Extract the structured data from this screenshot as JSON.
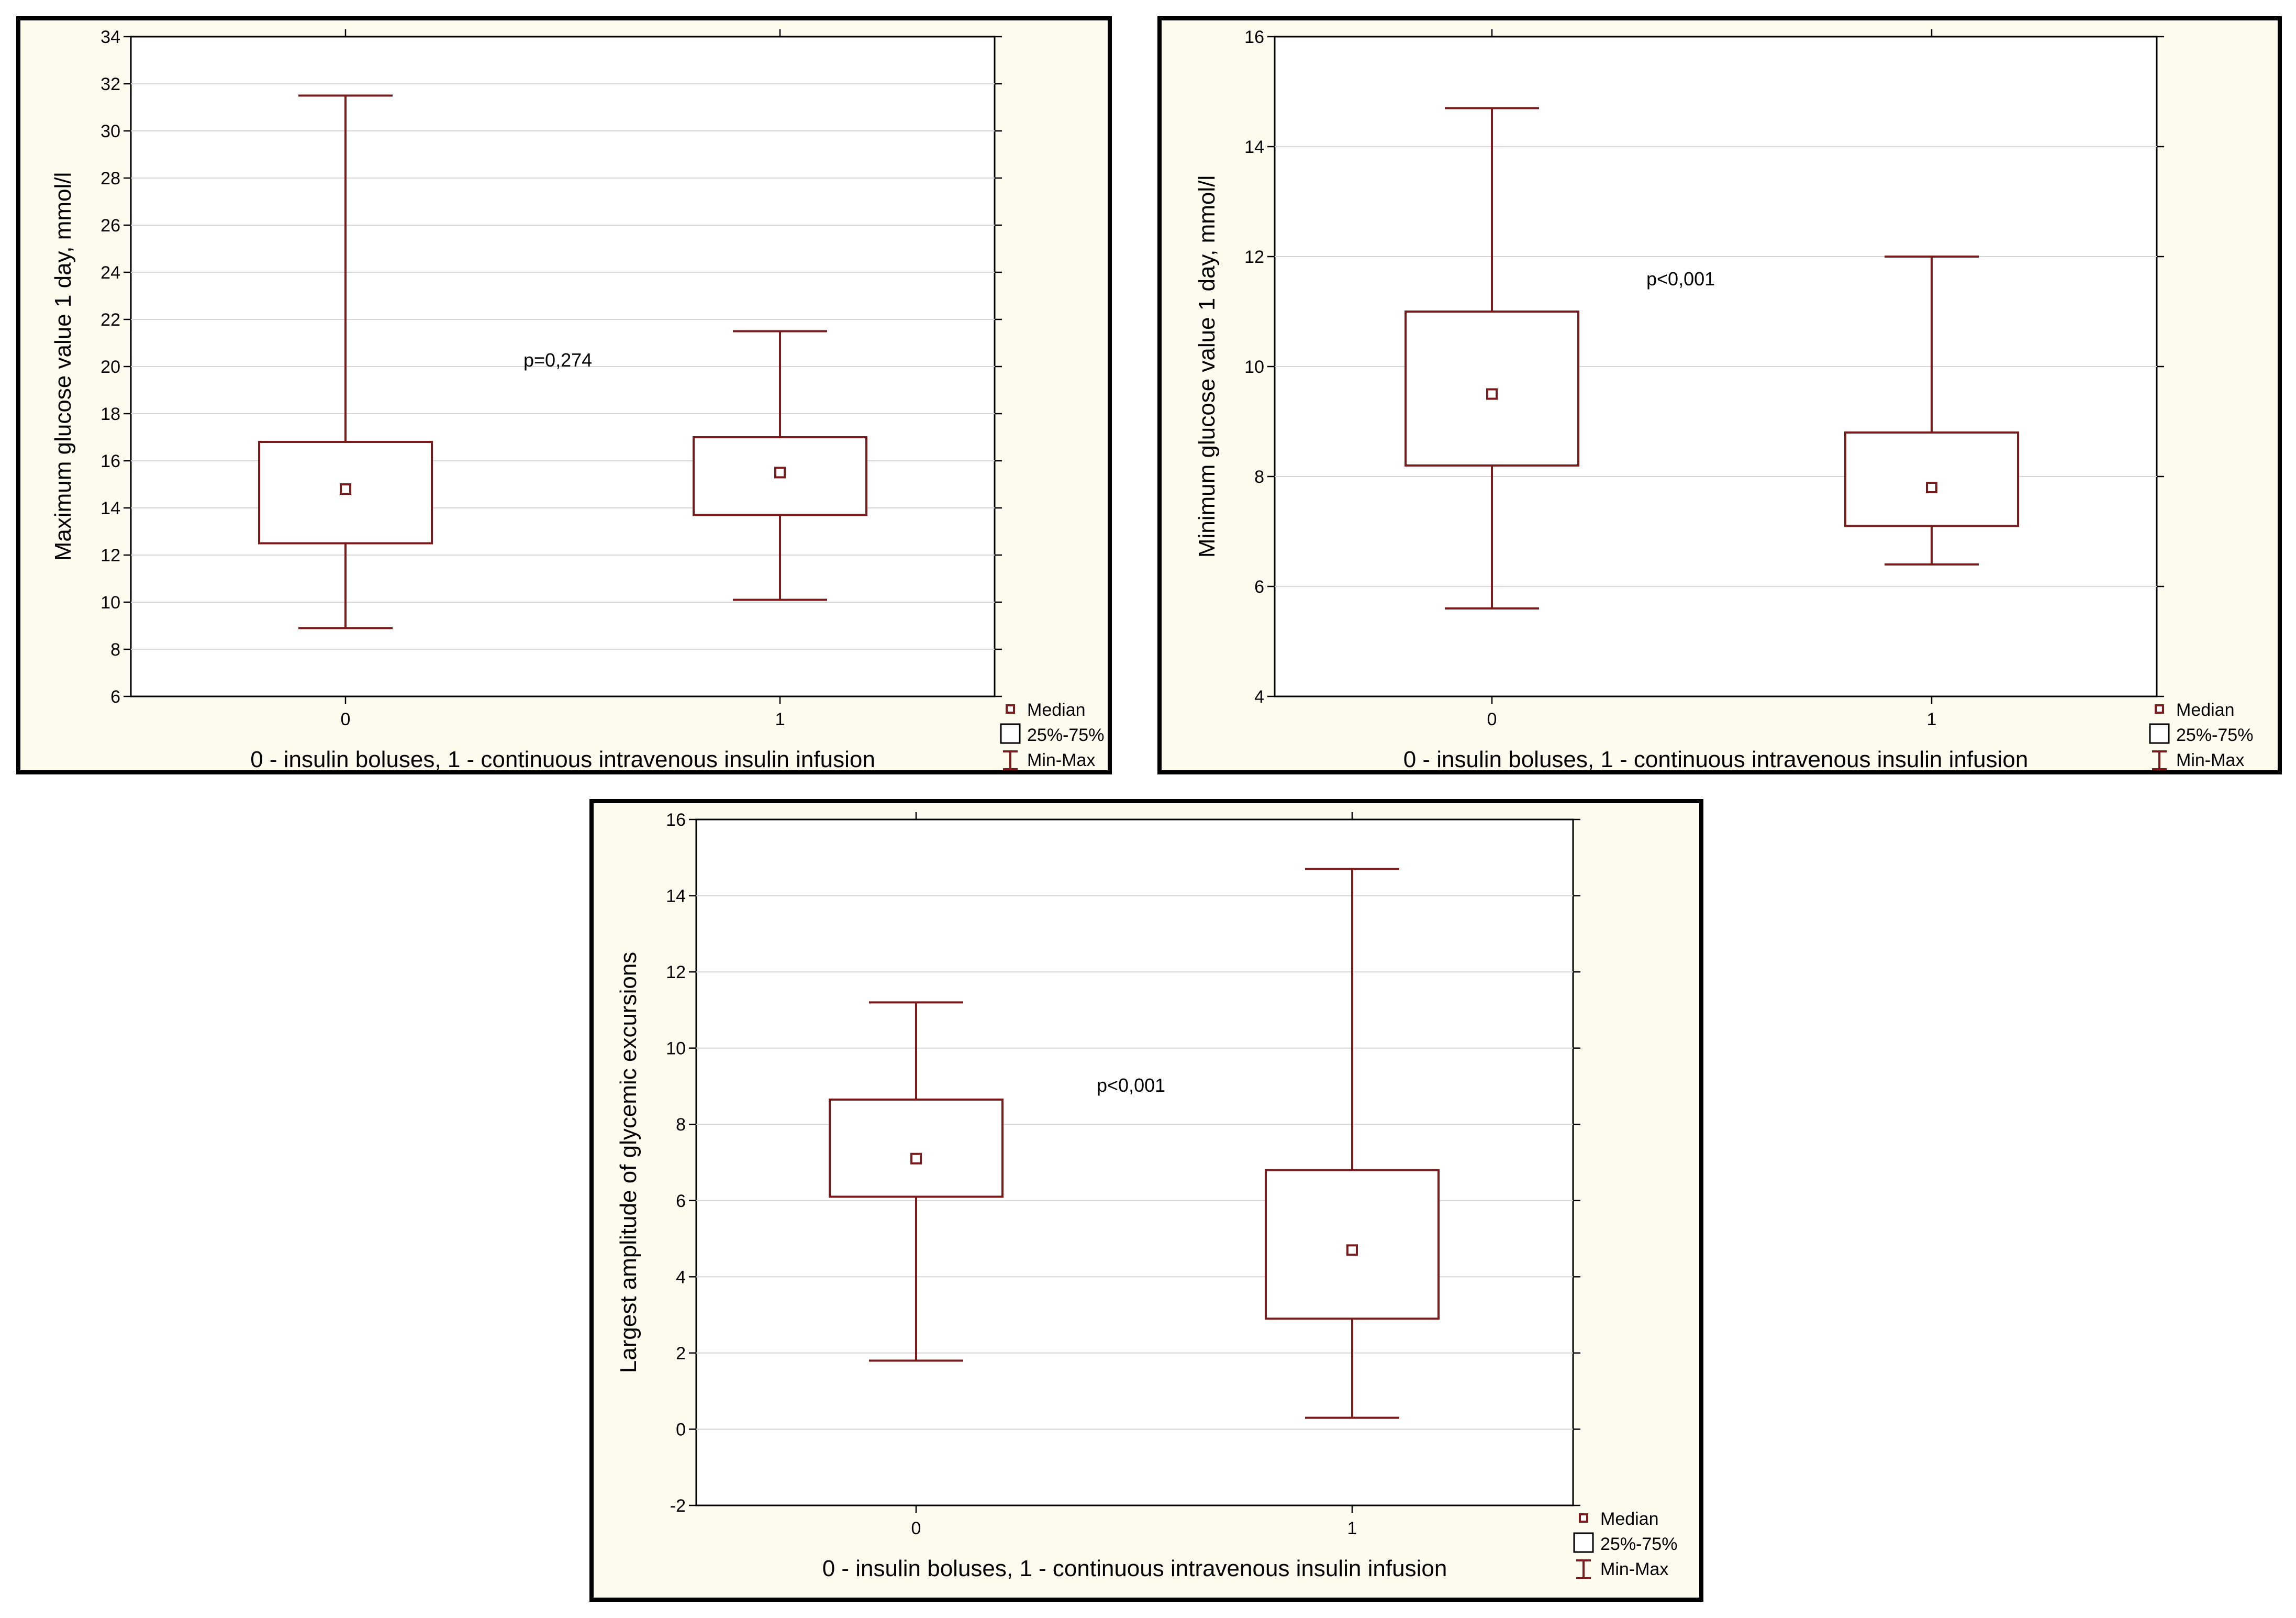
{
  "colors": {
    "box_stroke": "#7b1a1a",
    "panel_background": "#fdfbee",
    "grid": "#d6d6d6"
  },
  "chart_data": [
    {
      "type": "box",
      "categories": [
        "0",
        "1"
      ],
      "xlabel": "0 - insulin boluses, 1 - continuous intravenous insulin infusion",
      "ylabel": "Maximum glucose value 1 day, mmol/l",
      "ylim": [
        6,
        34
      ],
      "yticks": [
        6,
        8,
        10,
        12,
        14,
        16,
        18,
        20,
        22,
        24,
        26,
        28,
        30,
        32,
        34
      ],
      "grid": true,
      "annotation": "p=0,274",
      "legend": {
        "position": "bottom-right",
        "entries": [
          "Median",
          "25%-75%",
          "Min-Max"
        ]
      },
      "boxes": [
        {
          "category": "0",
          "min": 8.9,
          "q1": 12.5,
          "median": 14.8,
          "q3": 16.8,
          "max": 31.5
        },
        {
          "category": "1",
          "min": 10.1,
          "q1": 13.7,
          "median": 15.5,
          "q3": 17.0,
          "max": 21.5
        }
      ]
    },
    {
      "type": "box",
      "categories": [
        "0",
        "1"
      ],
      "xlabel": "0 - insulin boluses, 1 - continuous intravenous insulin infusion",
      "ylabel": "Minimum glucose value 1 day, mmol/l",
      "ylim": [
        4,
        16
      ],
      "yticks": [
        4,
        6,
        8,
        10,
        12,
        14,
        16
      ],
      "grid": true,
      "annotation": "p<0,001",
      "legend": {
        "position": "bottom-right",
        "entries": [
          "Median",
          "25%-75%",
          "Min-Max"
        ]
      },
      "boxes": [
        {
          "category": "0",
          "min": 5.6,
          "q1": 8.2,
          "median": 9.5,
          "q3": 11.0,
          "max": 14.7
        },
        {
          "category": "1",
          "min": 6.4,
          "q1": 7.1,
          "median": 7.8,
          "q3": 8.8,
          "max": 12.0
        }
      ]
    },
    {
      "type": "box",
      "categories": [
        "0",
        "1"
      ],
      "xlabel": "0 - insulin boluses, 1 - continuous intravenous insulin infusion",
      "ylabel": "Largest amplitude of glycemic excursions",
      "ylim": [
        -2,
        16
      ],
      "yticks": [
        -2,
        0,
        2,
        4,
        6,
        8,
        10,
        12,
        14,
        16
      ],
      "grid": true,
      "annotation": "p<0,001",
      "legend": {
        "position": "bottom-right",
        "entries": [
          "Median",
          "25%-75%",
          "Min-Max"
        ]
      },
      "boxes": [
        {
          "category": "0",
          "min": 1.8,
          "q1": 6.1,
          "median": 7.1,
          "q3": 8.65,
          "max": 11.2
        },
        {
          "category": "1",
          "min": 0.3,
          "q1": 2.9,
          "median": 4.7,
          "q3": 6.8,
          "max": 14.7
        }
      ]
    }
  ]
}
